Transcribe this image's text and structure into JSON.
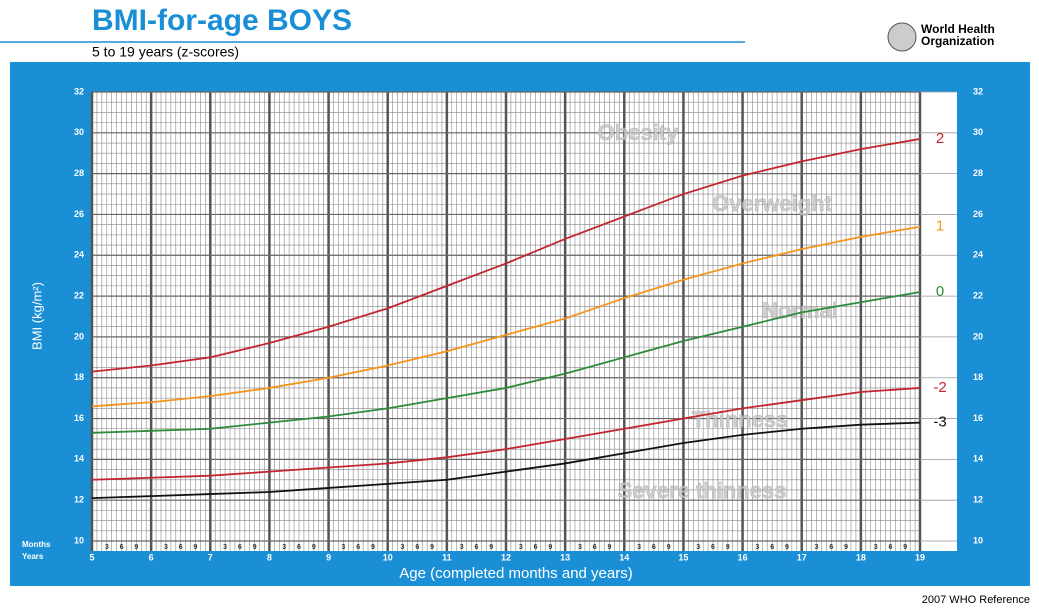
{
  "chart_data": {
    "type": "line",
    "title": "BMI-for-age  BOYS",
    "subtitle": "5 to 19 years (z-scores)",
    "organization": [
      "World Health",
      "Organization"
    ],
    "x_label": "Age (completed months and years)",
    "y_label": "BMI (kg/m²)",
    "months_label": "Months",
    "years_label": "Years",
    "month_ticks": [
      "3",
      "6",
      "9"
    ],
    "footer": "2007  WHO Reference",
    "annotations": [
      "Obesity",
      "Overweight",
      "Normal",
      "Thinness",
      "Severe thinness"
    ],
    "x": [
      5,
      6,
      7,
      8,
      9,
      10,
      11,
      12,
      13,
      14,
      15,
      16,
      17,
      18,
      19
    ],
    "xlim": [
      5,
      19
    ],
    "xticks": [
      5,
      6,
      7,
      8,
      9,
      10,
      11,
      12,
      13,
      14,
      15,
      16,
      17,
      18,
      19
    ],
    "ylim": [
      10,
      32
    ],
    "yticks": [
      10,
      12,
      14,
      16,
      18,
      20,
      22,
      24,
      26,
      28,
      30,
      32
    ],
    "grid": true,
    "series": [
      {
        "name": "2",
        "color": "#c3262e",
        "values": [
          18.3,
          18.6,
          19.0,
          19.7,
          20.5,
          21.4,
          22.5,
          23.6,
          24.8,
          25.9,
          27.0,
          27.9,
          28.6,
          29.2,
          29.7
        ]
      },
      {
        "name": "1",
        "color": "#f7941d",
        "values": [
          16.6,
          16.8,
          17.1,
          17.5,
          18.0,
          18.6,
          19.3,
          20.1,
          20.9,
          21.9,
          22.8,
          23.6,
          24.3,
          24.9,
          25.4
        ]
      },
      {
        "name": "0",
        "color": "#2e8b3a",
        "values": [
          15.3,
          15.4,
          15.5,
          15.8,
          16.1,
          16.5,
          17.0,
          17.5,
          18.2,
          19.0,
          19.8,
          20.5,
          21.2,
          21.7,
          22.2
        ]
      },
      {
        "name": "-2",
        "color": "#c3262e",
        "values": [
          13.0,
          13.1,
          13.2,
          13.4,
          13.6,
          13.8,
          14.1,
          14.5,
          15.0,
          15.5,
          16.0,
          16.5,
          16.9,
          17.3,
          17.5
        ]
      },
      {
        "name": "-3",
        "color": "#111111",
        "values": [
          12.1,
          12.2,
          12.3,
          12.4,
          12.6,
          12.8,
          13.0,
          13.4,
          13.8,
          14.3,
          14.8,
          15.2,
          15.5,
          15.7,
          15.8
        ]
      }
    ]
  }
}
